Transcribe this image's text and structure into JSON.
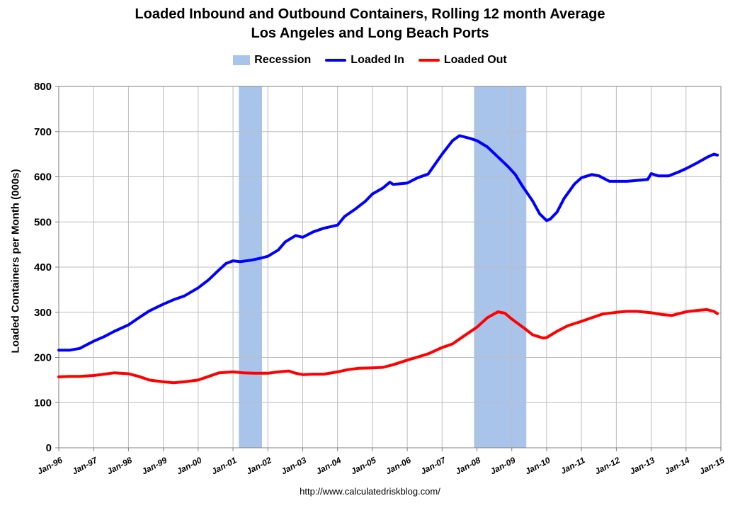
{
  "chart_data": {
    "type": "line",
    "title": "Loaded Inbound and Outbound Containers, Rolling 12 month Average",
    "subtitle": "Los Angeles and Long Beach Ports",
    "ylabel": "Loaded Containers per Month (000s)",
    "xlabel": "",
    "source": "http://www.calculatedriskblog.com/",
    "ylim": [
      0,
      800
    ],
    "yticks": [
      0,
      100,
      200,
      300,
      400,
      500,
      600,
      700,
      800
    ],
    "xlim": [
      1996.0,
      2015.0
    ],
    "xticks": [
      "Jan-96",
      "Jan-97",
      "Jan-98",
      "Jan-99",
      "Jan-00",
      "Jan-01",
      "Jan-02",
      "Jan-03",
      "Jan-04",
      "Jan-05",
      "Jan-06",
      "Jan-07",
      "Jan-08",
      "Jan-09",
      "Jan-10",
      "Jan-11",
      "Jan-12",
      "Jan-13",
      "Jan-14",
      "Jan-15"
    ],
    "grid": true,
    "legend_position": "top-center",
    "recessions": [
      {
        "name": "Recession",
        "start": "Mar-01",
        "end": "Nov-01"
      },
      {
        "name": "Recession",
        "start": "Dec-07",
        "end": "Jun-09"
      }
    ],
    "series": [
      {
        "name": "Loaded In",
        "color": "#0000ff",
        "points": [
          [
            1996.0,
            216
          ],
          [
            1996.3,
            216
          ],
          [
            1996.6,
            220
          ],
          [
            1997.0,
            236
          ],
          [
            1997.3,
            246
          ],
          [
            1997.6,
            258
          ],
          [
            1998.0,
            272
          ],
          [
            1998.3,
            288
          ],
          [
            1998.6,
            303
          ],
          [
            1999.0,
            318
          ],
          [
            1999.3,
            328
          ],
          [
            1999.6,
            336
          ],
          [
            2000.0,
            354
          ],
          [
            2000.3,
            372
          ],
          [
            2000.6,
            394
          ],
          [
            2000.8,
            408
          ],
          [
            2001.0,
            414
          ],
          [
            2001.2,
            412
          ],
          [
            2001.5,
            415
          ],
          [
            2001.8,
            420
          ],
          [
            2002.0,
            424
          ],
          [
            2002.3,
            438
          ],
          [
            2002.5,
            456
          ],
          [
            2002.8,
            470
          ],
          [
            2003.0,
            466
          ],
          [
            2003.3,
            478
          ],
          [
            2003.6,
            486
          ],
          [
            2004.0,
            493
          ],
          [
            2004.2,
            512
          ],
          [
            2004.5,
            528
          ],
          [
            2004.8,
            546
          ],
          [
            2005.0,
            562
          ],
          [
            2005.3,
            575
          ],
          [
            2005.5,
            588
          ],
          [
            2005.6,
            583
          ],
          [
            2006.0,
            586
          ],
          [
            2006.3,
            598
          ],
          [
            2006.6,
            606
          ],
          [
            2007.0,
            650
          ],
          [
            2007.3,
            680
          ],
          [
            2007.5,
            691
          ],
          [
            2007.8,
            685
          ],
          [
            2008.0,
            680
          ],
          [
            2008.3,
            666
          ],
          [
            2008.6,
            644
          ],
          [
            2008.9,
            622
          ],
          [
            2009.1,
            605
          ],
          [
            2009.3,
            580
          ],
          [
            2009.6,
            546
          ],
          [
            2009.8,
            518
          ],
          [
            2010.0,
            503
          ],
          [
            2010.1,
            506
          ],
          [
            2010.3,
            522
          ],
          [
            2010.5,
            552
          ],
          [
            2010.8,
            584
          ],
          [
            2011.0,
            598
          ],
          [
            2011.3,
            605
          ],
          [
            2011.5,
            602
          ],
          [
            2011.8,
            590
          ],
          [
            2012.0,
            590
          ],
          [
            2012.3,
            590
          ],
          [
            2012.6,
            592
          ],
          [
            2012.9,
            594
          ],
          [
            2013.0,
            607
          ],
          [
            2013.2,
            602
          ],
          [
            2013.5,
            602
          ],
          [
            2013.8,
            611
          ],
          [
            2014.0,
            618
          ],
          [
            2014.3,
            630
          ],
          [
            2014.6,
            643
          ],
          [
            2014.8,
            650
          ],
          [
            2014.9,
            648
          ]
        ]
      },
      {
        "name": "Loaded Out",
        "color": "#ff0000",
        "points": [
          [
            1996.0,
            157
          ],
          [
            1996.3,
            158
          ],
          [
            1996.6,
            158
          ],
          [
            1997.0,
            160
          ],
          [
            1997.3,
            163
          ],
          [
            1997.6,
            166
          ],
          [
            1998.0,
            164
          ],
          [
            1998.3,
            158
          ],
          [
            1998.6,
            150
          ],
          [
            1999.0,
            146
          ],
          [
            1999.3,
            144
          ],
          [
            1999.6,
            146
          ],
          [
            2000.0,
            150
          ],
          [
            2000.3,
            158
          ],
          [
            2000.6,
            166
          ],
          [
            2001.0,
            168
          ],
          [
            2001.3,
            166
          ],
          [
            2001.6,
            165
          ],
          [
            2002.0,
            165
          ],
          [
            2002.3,
            168
          ],
          [
            2002.6,
            170
          ],
          [
            2002.8,
            165
          ],
          [
            2003.0,
            162
          ],
          [
            2003.3,
            163
          ],
          [
            2003.6,
            163
          ],
          [
            2004.0,
            168
          ],
          [
            2004.3,
            173
          ],
          [
            2004.6,
            176
          ],
          [
            2005.0,
            177
          ],
          [
            2005.3,
            178
          ],
          [
            2005.6,
            184
          ],
          [
            2006.0,
            194
          ],
          [
            2006.3,
            201
          ],
          [
            2006.6,
            208
          ],
          [
            2007.0,
            222
          ],
          [
            2007.3,
            230
          ],
          [
            2007.6,
            246
          ],
          [
            2008.0,
            267
          ],
          [
            2008.3,
            288
          ],
          [
            2008.6,
            301
          ],
          [
            2008.8,
            298
          ],
          [
            2009.0,
            285
          ],
          [
            2009.3,
            268
          ],
          [
            2009.6,
            250
          ],
          [
            2009.9,
            243
          ],
          [
            2010.0,
            244
          ],
          [
            2010.3,
            258
          ],
          [
            2010.6,
            270
          ],
          [
            2011.0,
            280
          ],
          [
            2011.3,
            288
          ],
          [
            2011.6,
            296
          ],
          [
            2012.0,
            300
          ],
          [
            2012.3,
            302
          ],
          [
            2012.6,
            302
          ],
          [
            2013.0,
            299
          ],
          [
            2013.3,
            295
          ],
          [
            2013.6,
            293
          ],
          [
            2014.0,
            301
          ],
          [
            2014.3,
            304
          ],
          [
            2014.6,
            306
          ],
          [
            2014.8,
            302
          ],
          [
            2014.9,
            297
          ]
        ]
      }
    ]
  },
  "legend": {
    "recession_label": "Recession",
    "in_label": "Loaded In",
    "out_label": "Loaded Out",
    "recession_color": "#a9c4eb",
    "in_color": "#0000ff",
    "out_color": "#ff0000"
  }
}
